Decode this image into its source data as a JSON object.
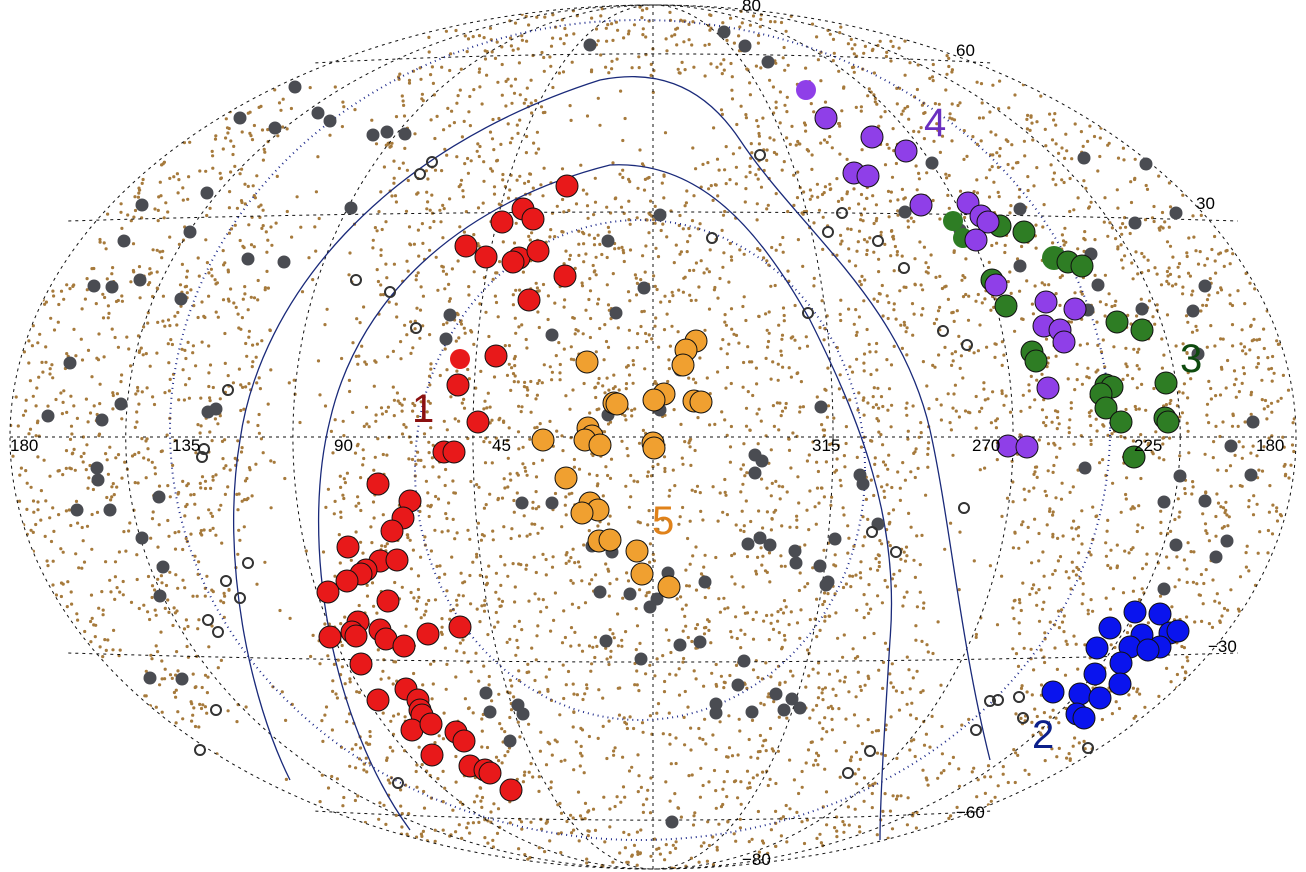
{
  "map": {
    "projection": "aitoff",
    "axis_labels": {
      "lon": [
        "180",
        "135",
        "90",
        "45",
        "315",
        "270",
        "225",
        "180"
      ],
      "lat_top": "80",
      "lat_60": "60",
      "lat_30": "30",
      "lat_m30": "−30",
      "lat_m60": "−60",
      "lat_m80": "−80"
    },
    "group_labels": [
      {
        "text": "1",
        "color": "#8b1010"
      },
      {
        "text": "2",
        "color": "#0b1f8a"
      },
      {
        "text": "3",
        "color": "#0e4a0e"
      },
      {
        "text": "4",
        "color": "#6a2fc0"
      },
      {
        "text": "5",
        "color": "#e0821a"
      }
    ],
    "colors": {
      "group1": "#e8191a",
      "group2": "#0a14ee",
      "group3": "#2e7d24",
      "group4": "#8f3fe8",
      "group5": "#f0a030",
      "background_points": "#a67a3c",
      "gray_points": "#4a4c52",
      "grid": "#111111",
      "boundary_line": "#1a2a7a",
      "circle_dots": "#1e2a8a"
    },
    "legend_names": {
      "group1": "1",
      "group2": "2",
      "group3": "3",
      "group4": "4",
      "group5": "5"
    }
  }
}
